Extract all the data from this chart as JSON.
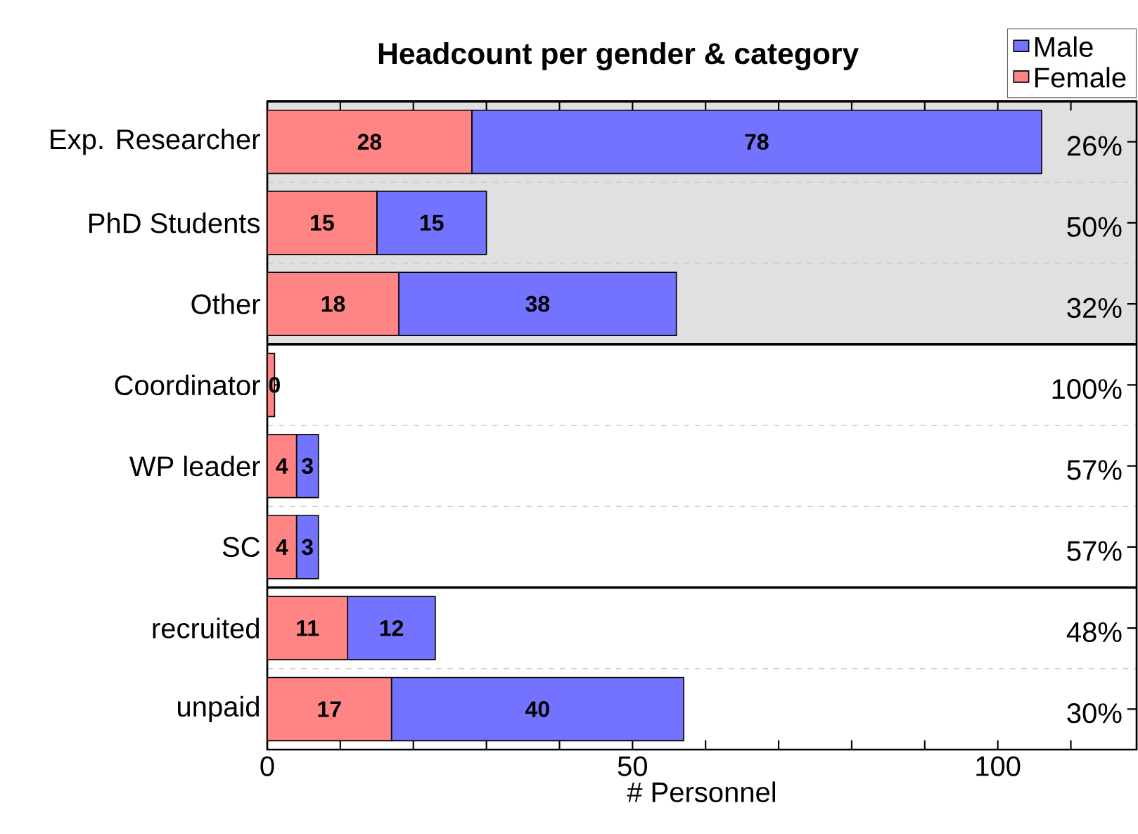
{
  "chart_data": {
    "type": "bar",
    "orientation": "horizontal",
    "stacked": true,
    "title": "Headcount per gender & category",
    "xlabel": "# Personnel",
    "categories": [
      "Exp. Researcher",
      "PhD Students",
      "Other",
      "Coordinator",
      "WP leader",
      "SC",
      "recruited",
      "unpaid"
    ],
    "series": [
      {
        "name": "Female",
        "color": "#ff8585",
        "values": [
          28,
          15,
          18,
          1,
          4,
          4,
          11,
          17
        ],
        "value_labels": [
          "28",
          "15",
          "18",
          null,
          "4",
          "4",
          "11",
          "17"
        ]
      },
      {
        "name": "Male",
        "color": "#7373ff",
        "values": [
          78,
          15,
          38,
          0,
          3,
          3,
          12,
          40
        ],
        "value_labels": [
          "78",
          "15",
          "38",
          "0",
          "3",
          "3",
          "12",
          "40"
        ]
      }
    ],
    "xlim": [
      0,
      119
    ],
    "xticks": [
      0,
      {
        "value": 10,
        "label": null
      },
      {
        "value": 20,
        "label": null
      },
      {
        "value": 30,
        "label": null
      },
      {
        "value": 40,
        "label": null
      },
      50,
      {
        "value": 60,
        "label": null
      },
      {
        "value": 70,
        "label": null
      },
      {
        "value": 80,
        "label": null
      },
      {
        "value": 90,
        "label": null
      },
      100,
      {
        "value": 110,
        "label": null
      }
    ],
    "bands": [
      {
        "axis": "y",
        "from": "Exp. Researcher",
        "to": "Other",
        "color": "#e0e0e0"
      }
    ],
    "annotations": [
      "26%",
      "50%",
      "32%",
      "100%",
      "57%",
      "57%",
      "48%",
      "30%"
    ],
    "grid": "y",
    "legend": "top right"
  }
}
